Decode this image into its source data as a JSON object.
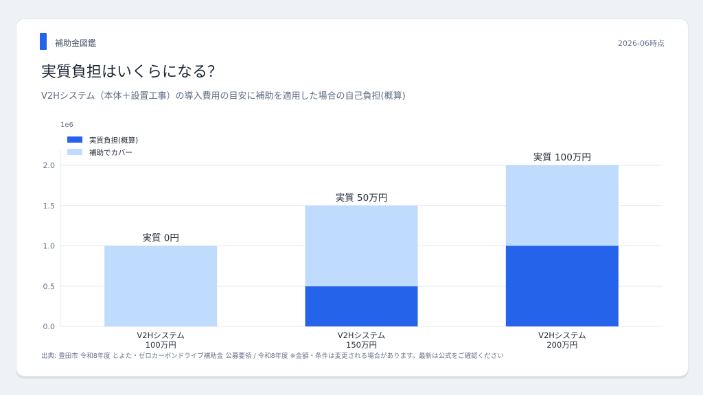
{
  "header": {
    "brand": "補助金図鑑",
    "date": "2026-06時点"
  },
  "page": {
    "title": "実質負担はいくらになる？",
    "subtitle": "V2Hシステム（本体＋設置工事）の導入費用の目安に補助を適用した場合の自己負担(概算)"
  },
  "chart_data": {
    "type": "bar",
    "stacked": true,
    "categories": [
      [
        "V2Hシステム",
        "100万円"
      ],
      [
        "V2Hシステム",
        "150万円"
      ],
      [
        "V2Hシステム",
        "200万円"
      ]
    ],
    "series": [
      {
        "name": "実質負担(概算)",
        "color": "#2563eb",
        "values": [
          0,
          500000,
          1000000
        ]
      },
      {
        "name": "補助でカバー",
        "color": "#bfdbfe",
        "values": [
          1000000,
          1000000,
          1000000
        ]
      }
    ],
    "bar_labels": [
      "実質 0円",
      "実質 50万円",
      "実質 100万円"
    ],
    "y_ticks": [
      "0.0",
      "0.5",
      "1.0",
      "1.5",
      "2.0"
    ],
    "y_tick_values": [
      0,
      500000,
      1000000,
      1500000,
      2000000
    ],
    "y_offset_label": "1e6",
    "ylim": [
      0,
      2000000
    ],
    "grid": true,
    "legend_position": "top-left"
  },
  "footer": {
    "source": "出典: 豊田市 令和8年度 とよた・ゼロカーボンドライブ補助金 公募要領 / 令和8年度 ※金額・条件は変更される場合があります。最新は公式をご確認ください"
  }
}
